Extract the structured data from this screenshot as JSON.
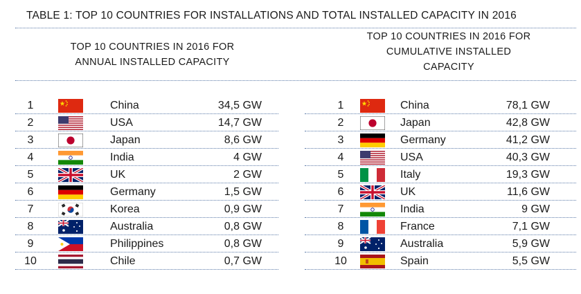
{
  "title": "TABLE 1: TOP 10 COUNTRIES FOR INSTALLATIONS AND TOTAL INSTALLED CAPACITY IN 2016",
  "left": {
    "heading_lines": [
      "TOP 10 COUNTRIES IN 2016 FOR",
      "ANNUAL INSTALLED CAPACITY"
    ],
    "rows": [
      {
        "rank": "1",
        "flag": "china-flag",
        "country": "China",
        "value": "34,5 GW"
      },
      {
        "rank": "2",
        "flag": "usa-flag",
        "country": "USA",
        "value": "14,7 GW"
      },
      {
        "rank": "3",
        "flag": "japan-flag",
        "country": "Japan",
        "value": "8,6 GW"
      },
      {
        "rank": "4",
        "flag": "india-flag",
        "country": "India",
        "value": "4 GW"
      },
      {
        "rank": "5",
        "flag": "uk-flag",
        "country": "UK",
        "value": "2 GW"
      },
      {
        "rank": "6",
        "flag": "germany-flag",
        "country": "Germany",
        "value": "1,5 GW"
      },
      {
        "rank": "7",
        "flag": "korea-flag",
        "country": "Korea",
        "value": "0,9 GW"
      },
      {
        "rank": "8",
        "flag": "australia-flag",
        "country": "Australia",
        "value": "0,8 GW"
      },
      {
        "rank": "9",
        "flag": "philippines-flag",
        "country": "Philippines",
        "value": "0,8 GW"
      },
      {
        "rank": "10",
        "flag": "thailand-flag",
        "country": "Chile",
        "value": "0,7 GW"
      }
    ]
  },
  "right": {
    "heading_lines": [
      "TOP 10 COUNTRIES IN 2016 FOR",
      "CUMULATIVE INSTALLED",
      "CAPACITY"
    ],
    "rows": [
      {
        "rank": "1",
        "flag": "china-flag",
        "country": "China",
        "value": "78,1 GW"
      },
      {
        "rank": "2",
        "flag": "japan-flag",
        "country": "Japan",
        "value": "42,8 GW"
      },
      {
        "rank": "3",
        "flag": "germany-flag",
        "country": "Germany",
        "value": "41,2 GW"
      },
      {
        "rank": "4",
        "flag": "usa-flag",
        "country": "USA",
        "value": "40,3 GW"
      },
      {
        "rank": "5",
        "flag": "italy-flag",
        "country": "Italy",
        "value": "19,3 GW"
      },
      {
        "rank": "6",
        "flag": "uk-flag",
        "country": "UK",
        "value": "11,6 GW"
      },
      {
        "rank": "7",
        "flag": "india-flag",
        "country": "India",
        "value": "9 GW"
      },
      {
        "rank": "8",
        "flag": "france-flag",
        "country": "France",
        "value": "7,1 GW"
      },
      {
        "rank": "9",
        "flag": "australia-flag",
        "country": "Australia",
        "value": "5,9 GW"
      },
      {
        "rank": "10",
        "flag": "spain-flag",
        "country": "Spain",
        "value": "5,5 GW"
      }
    ]
  }
}
